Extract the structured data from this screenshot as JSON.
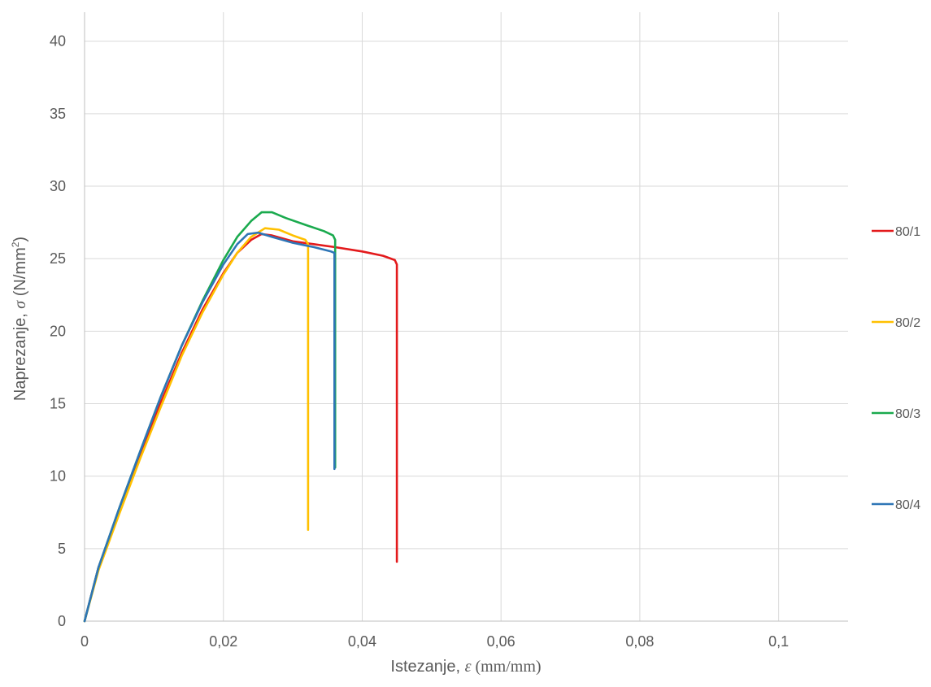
{
  "chart_data": {
    "type": "line",
    "xlabel": {
      "prefix": "Istezanje, ",
      "symbol": "ε",
      "unit": " (mm/mm)"
    },
    "ylabel": {
      "prefix": "Naprezanje, ",
      "symbol": "σ",
      "unit_open": " (N/mm",
      "unit_sup": "2",
      "unit_close": ")"
    },
    "xlim": [
      0,
      0.11
    ],
    "ylim": [
      0,
      42
    ],
    "x_ticks": [
      {
        "value": 0,
        "label": "0"
      },
      {
        "value": 0.02,
        "label": "0,02"
      },
      {
        "value": 0.04,
        "label": "0,04"
      },
      {
        "value": 0.06,
        "label": "0,06"
      },
      {
        "value": 0.08,
        "label": "0,08"
      },
      {
        "value": 0.1,
        "label": "0,1"
      }
    ],
    "y_ticks": [
      {
        "value": 0,
        "label": "0"
      },
      {
        "value": 5,
        "label": "5"
      },
      {
        "value": 10,
        "label": "10"
      },
      {
        "value": 15,
        "label": "15"
      },
      {
        "value": 20,
        "label": "20"
      },
      {
        "value": 25,
        "label": "25"
      },
      {
        "value": 30,
        "label": "30"
      },
      {
        "value": 35,
        "label": "35"
      },
      {
        "value": 40,
        "label": "40"
      }
    ],
    "grid": true,
    "legend_position": "right",
    "series": [
      {
        "name": "80/1",
        "color": "#e31a1c",
        "points": [
          [
            0,
            0
          ],
          [
            0.002,
            3.7
          ],
          [
            0.005,
            7.6
          ],
          [
            0.008,
            11.4
          ],
          [
            0.011,
            15.1
          ],
          [
            0.014,
            18.5
          ],
          [
            0.017,
            21.5
          ],
          [
            0.02,
            24.0
          ],
          [
            0.022,
            25.4
          ],
          [
            0.024,
            26.3
          ],
          [
            0.0255,
            26.7
          ],
          [
            0.027,
            26.6
          ],
          [
            0.03,
            26.2
          ],
          [
            0.033,
            26.0
          ],
          [
            0.036,
            25.8
          ],
          [
            0.04,
            25.5
          ],
          [
            0.043,
            25.2
          ],
          [
            0.0447,
            24.9
          ],
          [
            0.045,
            24.6
          ],
          [
            0.045,
            4.1
          ]
        ]
      },
      {
        "name": "80/2",
        "color": "#ffc000",
        "points": [
          [
            0,
            0
          ],
          [
            0.002,
            3.5
          ],
          [
            0.005,
            7.4
          ],
          [
            0.008,
            11.2
          ],
          [
            0.011,
            14.8
          ],
          [
            0.014,
            18.3
          ],
          [
            0.017,
            21.3
          ],
          [
            0.02,
            23.9
          ],
          [
            0.022,
            25.4
          ],
          [
            0.024,
            26.5
          ],
          [
            0.026,
            27.1
          ],
          [
            0.028,
            27.0
          ],
          [
            0.03,
            26.6
          ],
          [
            0.0318,
            26.3
          ],
          [
            0.0322,
            26.0
          ],
          [
            0.0322,
            6.3
          ]
        ]
      },
      {
        "name": "80/3",
        "color": "#1aaa4e",
        "points": [
          [
            0,
            0
          ],
          [
            0.002,
            3.7
          ],
          [
            0.005,
            7.8
          ],
          [
            0.008,
            11.7
          ],
          [
            0.011,
            15.5
          ],
          [
            0.014,
            19.0
          ],
          [
            0.017,
            22.1
          ],
          [
            0.02,
            24.9
          ],
          [
            0.022,
            26.5
          ],
          [
            0.024,
            27.6
          ],
          [
            0.0255,
            28.2
          ],
          [
            0.027,
            28.2
          ],
          [
            0.029,
            27.8
          ],
          [
            0.032,
            27.3
          ],
          [
            0.0345,
            26.9
          ],
          [
            0.0358,
            26.6
          ],
          [
            0.0361,
            26.3
          ],
          [
            0.0361,
            10.6
          ]
        ]
      },
      {
        "name": "80/4",
        "color": "#2e75b6",
        "points": [
          [
            0,
            0
          ],
          [
            0.002,
            3.7
          ],
          [
            0.005,
            7.8
          ],
          [
            0.008,
            11.7
          ],
          [
            0.011,
            15.5
          ],
          [
            0.014,
            19.0
          ],
          [
            0.017,
            22.0
          ],
          [
            0.02,
            24.6
          ],
          [
            0.022,
            26.0
          ],
          [
            0.0235,
            26.7
          ],
          [
            0.025,
            26.8
          ],
          [
            0.027,
            26.5
          ],
          [
            0.03,
            26.1
          ],
          [
            0.033,
            25.8
          ],
          [
            0.0355,
            25.5
          ],
          [
            0.036,
            25.4
          ],
          [
            0.036,
            10.5
          ]
        ]
      }
    ]
  }
}
